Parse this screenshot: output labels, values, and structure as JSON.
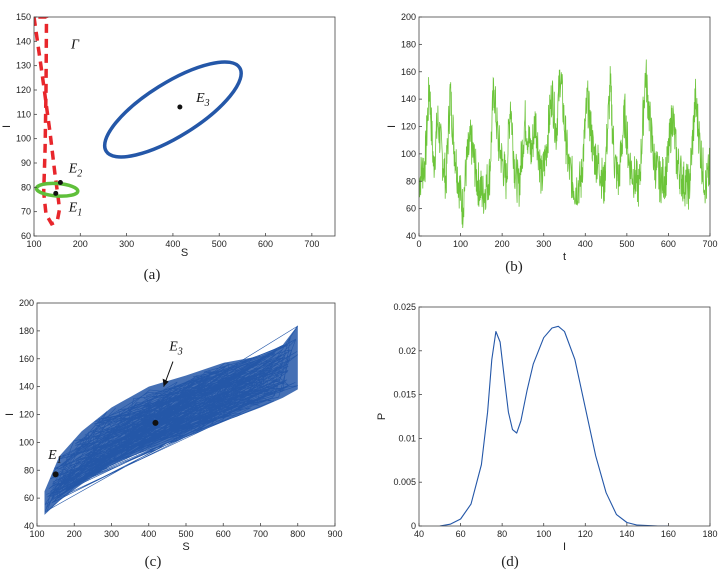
{
  "chart_data": [
    {
      "id": "a",
      "type": "line",
      "caption": "(a)",
      "xlabel": "S",
      "ylabel": "I",
      "xlim": [
        100,
        750
      ],
      "ylim": [
        60,
        150
      ],
      "xticks": [
        100,
        200,
        300,
        400,
        500,
        600,
        700
      ],
      "yticks": [
        60,
        70,
        80,
        90,
        100,
        110,
        120,
        130,
        140,
        150
      ],
      "curves": [
        {
          "name": "Γ",
          "style": "dashed",
          "color": "#e8262b",
          "points": [
            [
              100,
              150
            ],
            [
              118,
              126
            ],
            [
              135,
              102
            ],
            [
              145,
              86
            ],
            [
              152,
              76
            ],
            [
              155,
              71
            ],
            [
              150,
              66
            ],
            [
              138,
              65
            ],
            [
              126,
              69
            ],
            [
              121,
              78
            ],
            [
              124,
              96
            ],
            [
              126,
              120
            ],
            [
              127,
              150
            ]
          ]
        },
        {
          "name": "",
          "style": "solid",
          "color": "#2457a8",
          "center": [
            400,
            112
          ],
          "semi_axes": [
            340,
            11
          ],
          "angle_deg": 32
        },
        {
          "name": "",
          "style": "solid",
          "color": "#5fbf3a",
          "center": [
            150,
            79
          ],
          "semi_axes": [
            27,
            8.5
          ],
          "angle_deg": 86
        }
      ],
      "points": [
        {
          "label": "E₁",
          "x": 147,
          "y": 77.5
        },
        {
          "label": "E₂",
          "x": 157,
          "y": 82
        },
        {
          "label": "E₃",
          "x": 415,
          "y": 113
        }
      ],
      "annotations": [
        {
          "text": "Γ",
          "x": 180,
          "y": 137,
          "sub": ""
        },
        {
          "text": "E",
          "sub": "2",
          "x": 175,
          "y": 86
        },
        {
          "text": "E",
          "sub": "1",
          "x": 175,
          "y": 70
        },
        {
          "text": "E",
          "sub": "3",
          "x": 450,
          "y": 115
        }
      ],
      "colors": {
        "axis": "#444444"
      }
    },
    {
      "id": "b",
      "type": "line",
      "caption": "(b)",
      "xlabel": "t",
      "ylabel": "I",
      "xlim": [
        0,
        700
      ],
      "ylim": [
        40,
        200
      ],
      "xticks": [
        0,
        100,
        200,
        300,
        400,
        500,
        600,
        700
      ],
      "yticks": [
        40,
        60,
        80,
        100,
        120,
        140,
        160,
        180,
        200
      ],
      "series": [
        {
          "name": "",
          "color": "#6cc43a",
          "values": [
            [
              0,
              80
            ],
            [
              15,
              95
            ],
            [
              25,
              150
            ],
            [
              35,
              90
            ],
            [
              45,
              125
            ],
            [
              55,
              100
            ],
            [
              65,
              80
            ],
            [
              75,
              145
            ],
            [
              85,
              105
            ],
            [
              95,
              80
            ],
            [
              105,
              60
            ],
            [
              115,
              95
            ],
            [
              125,
              110
            ],
            [
              140,
              80
            ],
            [
              155,
              70
            ],
            [
              170,
              85
            ],
            [
              180,
              150
            ],
            [
              190,
              110
            ],
            [
              200,
              95
            ],
            [
              210,
              80
            ],
            [
              220,
              140
            ],
            [
              230,
              90
            ],
            [
              240,
              75
            ],
            [
              255,
              125
            ],
            [
              270,
              100
            ],
            [
              280,
              125
            ],
            [
              295,
              80
            ],
            [
              305,
              100
            ],
            [
              320,
              145
            ],
            [
              330,
              115
            ],
            [
              340,
              160
            ],
            [
              350,
              120
            ],
            [
              360,
              90
            ],
            [
              375,
              75
            ],
            [
              390,
              80
            ],
            [
              405,
              140
            ],
            [
              420,
              100
            ],
            [
              435,
              90
            ],
            [
              445,
              75
            ],
            [
              460,
              150
            ],
            [
              470,
              95
            ],
            [
              480,
              80
            ],
            [
              495,
              130
            ],
            [
              505,
              95
            ],
            [
              515,
              85
            ],
            [
              530,
              75
            ],
            [
              545,
              160
            ],
            [
              555,
              125
            ],
            [
              565,
              95
            ],
            [
              580,
              80
            ],
            [
              595,
              85
            ],
            [
              610,
              130
            ],
            [
              620,
              95
            ],
            [
              635,
              80
            ],
            [
              650,
              75
            ],
            [
              665,
              140
            ],
            [
              680,
              95
            ],
            [
              690,
              75
            ],
            [
              700,
              90
            ]
          ]
        }
      ],
      "colors": {
        "axis": "#444444"
      }
    },
    {
      "id": "c",
      "type": "line",
      "caption": "(c)",
      "xlabel": "S",
      "ylabel": "I",
      "xlim": [
        100,
        900
      ],
      "ylim": [
        40,
        200
      ],
      "xticks": [
        100,
        200,
        300,
        400,
        500,
        600,
        700,
        800,
        900
      ],
      "yticks": [
        40,
        60,
        80,
        100,
        120,
        140,
        160,
        180,
        200
      ],
      "band": {
        "color": "#2457a8",
        "upper": [
          [
            120,
            65
          ],
          [
            160,
            90
          ],
          [
            220,
            108
          ],
          [
            300,
            125
          ],
          [
            400,
            140
          ],
          [
            500,
            148
          ],
          [
            600,
            157
          ],
          [
            700,
            162
          ],
          [
            760,
            170
          ],
          [
            800,
            184
          ]
        ],
        "lower": [
          [
            120,
            48
          ],
          [
            160,
            58
          ],
          [
            220,
            70
          ],
          [
            300,
            84
          ],
          [
            400,
            95
          ],
          [
            500,
            104
          ],
          [
            600,
            115
          ],
          [
            700,
            125
          ],
          [
            760,
            132
          ],
          [
            800,
            138
          ]
        ]
      },
      "points": [
        {
          "label": "E₁",
          "x": 150,
          "y": 77
        },
        {
          "label": "E₃",
          "x": 418,
          "y": 114
        }
      ],
      "annotations": [
        {
          "text": "E",
          "sub": "1",
          "x": 130,
          "y": 88
        },
        {
          "text": "E",
          "sub": "3",
          "x": 455,
          "y": 166
        }
      ],
      "arrow": {
        "from": [
          465,
          158
        ],
        "to": [
          440,
          140
        ]
      },
      "colors": {
        "axis": "#444444"
      }
    },
    {
      "id": "d",
      "type": "line",
      "caption": "(d)",
      "xlabel": "I",
      "ylabel": "P",
      "xlim": [
        40,
        180
      ],
      "ylim": [
        0,
        0.025
      ],
      "xticks": [
        40,
        60,
        80,
        100,
        120,
        140,
        160,
        180
      ],
      "yticks": [
        0,
        0.005,
        0.01,
        0.015,
        0.02,
        0.025
      ],
      "ytick_labels": [
        "0",
        "0.005",
        "0.01",
        "0.015",
        "0.02",
        "0.025"
      ],
      "series": [
        {
          "name": "",
          "color": "#2457a8",
          "values": [
            [
              50,
              0
            ],
            [
              55,
              0.0002
            ],
            [
              60,
              0.0008
            ],
            [
              65,
              0.0025
            ],
            [
              70,
              0.007
            ],
            [
              73,
              0.013
            ],
            [
              75,
              0.019
            ],
            [
              77,
              0.0222
            ],
            [
              79,
              0.021
            ],
            [
              81,
              0.017
            ],
            [
              83,
              0.013
            ],
            [
              85,
              0.011
            ],
            [
              87,
              0.0106
            ],
            [
              89,
              0.012
            ],
            [
              92,
              0.0155
            ],
            [
              95,
              0.0185
            ],
            [
              100,
              0.0215
            ],
            [
              104,
              0.0226
            ],
            [
              107,
              0.0228
            ],
            [
              110,
              0.0222
            ],
            [
              115,
              0.019
            ],
            [
              120,
              0.0135
            ],
            [
              125,
              0.008
            ],
            [
              130,
              0.0038
            ],
            [
              135,
              0.0013
            ],
            [
              140,
              0.0004
            ],
            [
              145,
              0.0001
            ],
            [
              155,
              0
            ],
            [
              160,
              0
            ]
          ]
        }
      ],
      "colors": {
        "axis": "#444444"
      }
    }
  ]
}
